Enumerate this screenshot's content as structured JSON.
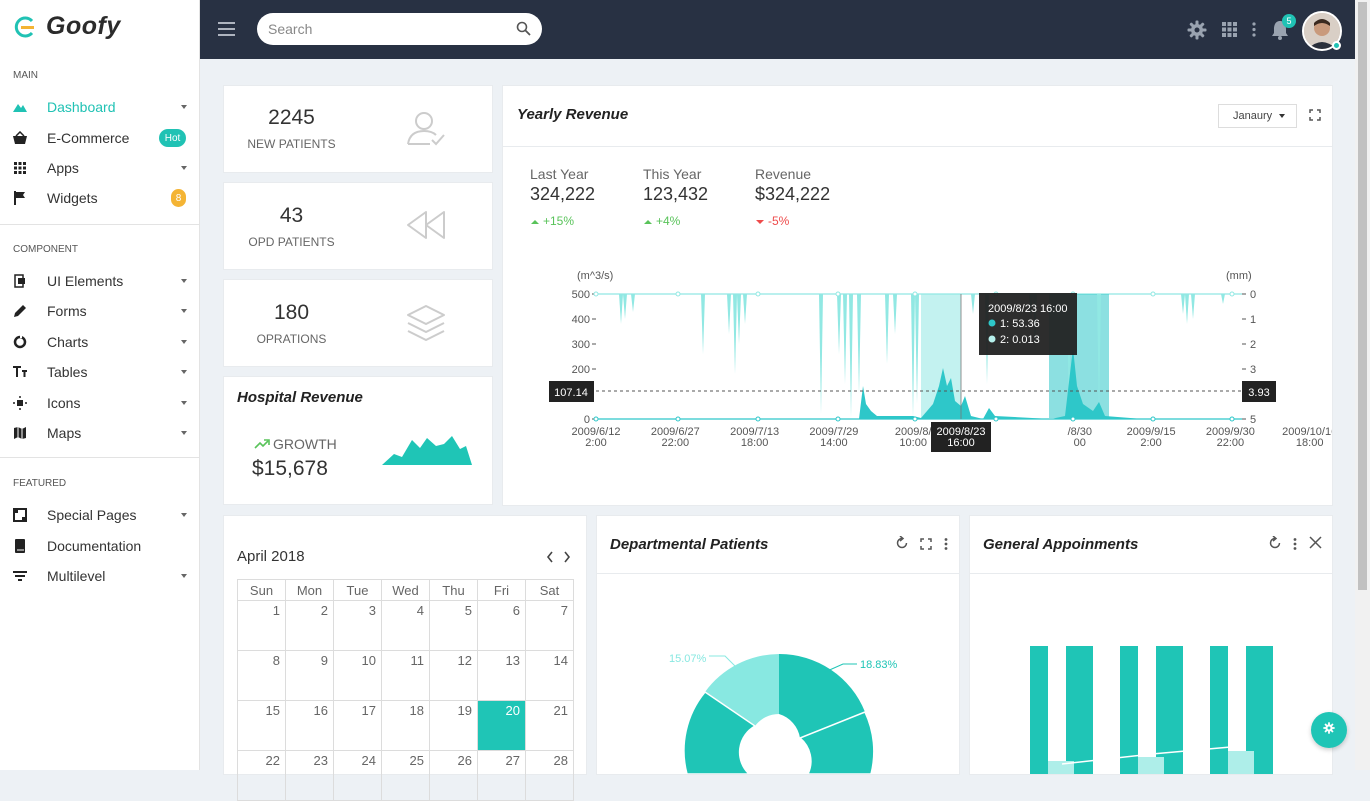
{
  "app": {
    "name": "Goofy"
  },
  "sidebar": {
    "sections": [
      "MAIN",
      "COMPONENT",
      "FEATURED"
    ],
    "items": [
      {
        "label": "Dashboard"
      },
      {
        "label": "E-Commerce",
        "badge": "Hot"
      },
      {
        "label": "Apps"
      },
      {
        "label": "Widgets",
        "badge": "8"
      },
      {
        "label": "UI Elements"
      },
      {
        "label": "Forms"
      },
      {
        "label": "Charts"
      },
      {
        "label": "Tables"
      },
      {
        "label": "Icons"
      },
      {
        "label": "Maps"
      },
      {
        "label": "Special Pages"
      },
      {
        "label": "Documentation"
      },
      {
        "label": "Multilevel"
      }
    ]
  },
  "topbar": {
    "search_placeholder": "Search",
    "notification_count": "5"
  },
  "stats": [
    {
      "value": "2245",
      "label": "NEW PATIENTS",
      "icon": "user-icon"
    },
    {
      "value": "43",
      "label": "OPD PATIENTS",
      "icon": "rewind-icon"
    },
    {
      "value": "180",
      "label": "OPRATIONS",
      "icon": "layers-icon"
    }
  ],
  "hospital_revenue": {
    "title": "Hospital Revenue",
    "growth_label": "GROWTH",
    "value": "$15,678"
  },
  "yearly_revenue": {
    "title": "Yearly Revenue",
    "month": "Janaury",
    "stats": [
      {
        "label": "Last Year",
        "value": "324,222",
        "change": "+15%",
        "trend": "up"
      },
      {
        "label": "This Year",
        "value": "123,432",
        "change": "+4%",
        "trend": "up"
      },
      {
        "label": "Revenue",
        "value": "$324,222",
        "change": "-5%",
        "trend": "down"
      }
    ]
  },
  "chart_data": {
    "type": "area",
    "y_left_unit": "(m^3/s)",
    "y_right_unit": "(mm)",
    "y_left_ticks": [
      "500",
      "400",
      "300",
      "200",
      "0"
    ],
    "y_right_ticks": [
      "0",
      "1",
      "2",
      "3",
      "5"
    ],
    "ylim_left": [
      0,
      500
    ],
    "ylim_right": [
      0,
      5
    ],
    "x_ticks": [
      [
        "2009/6/12",
        "2:00"
      ],
      [
        "2009/6/27",
        "22:00"
      ],
      [
        "2009/7/13",
        "18:00"
      ],
      [
        "2009/7/29",
        "14:00"
      ],
      [
        "2009/8/",
        "10:00"
      ],
      [
        "",
        ""
      ],
      [
        "/8/30",
        "00"
      ],
      [
        "2009/9/15",
        "2:00"
      ],
      [
        "2009/9/30",
        "22:00"
      ],
      [
        "2009/10/16",
        "18:00"
      ]
    ],
    "crosshair_left": "107.14",
    "crosshair_right": "3.93",
    "crosshair_x": [
      "2009/8/23",
      "16:00"
    ],
    "tooltip": {
      "title": "2009/8/23 16:00",
      "rows": [
        "1: 53.36",
        "2: 0.013"
      ]
    },
    "colors": {
      "series": "#2ec7c9",
      "light": "#91e8e3"
    }
  },
  "calendar": {
    "title": "April 2018",
    "days": [
      "Sun",
      "Mon",
      "Tue",
      "Wed",
      "Thu",
      "Fri",
      "Sat"
    ],
    "weeks": [
      [
        "1",
        "2",
        "3",
        "4",
        "5",
        "6",
        "7"
      ],
      [
        "8",
        "9",
        "10",
        "11",
        "12",
        "13",
        "14"
      ],
      [
        "15",
        "16",
        "17",
        "18",
        "19",
        "20",
        "21"
      ],
      [
        "22",
        "23",
        "24",
        "25",
        "26",
        "27",
        "28"
      ]
    ],
    "today": "20"
  },
  "departmental": {
    "title": "Departmental Patients",
    "chart_data": {
      "type": "pie",
      "labels": [
        "15.07%",
        "18.83%"
      ],
      "values": [
        15.07,
        18.83
      ]
    }
  },
  "appointments": {
    "title": "General Appoinments"
  }
}
